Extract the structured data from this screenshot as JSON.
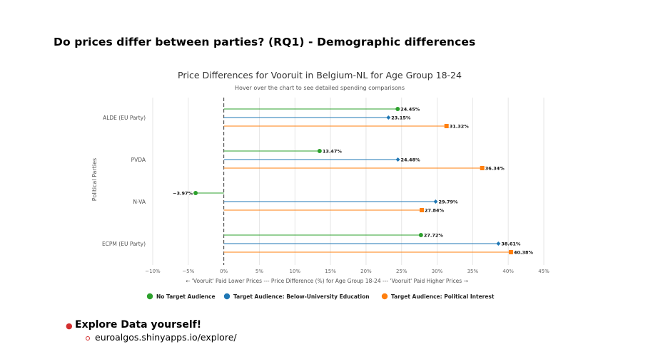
{
  "slide": {
    "title": "Do prices differ between parties? (RQ1) - Demographic differences",
    "bullet": "Explore Data yourself!",
    "subbullet": "euroalgos.shinyapps.io/explore/"
  },
  "chart_data": {
    "type": "dot-lollipop",
    "title": "Price Differences for Vooruit in Belgium-NL for Age Group 18-24",
    "subtitle": "Hover over the chart to see detailed spending comparisons",
    "xlabel": "← 'Vooruit' Paid Lower Prices --- Price Difference (%) for Age Group 18-24 --- 'Vooruit' Paid Higher Prices →",
    "ylabel": "Political Parties",
    "xlim": [
      -10,
      45
    ],
    "xticks": [
      -10,
      -5,
      0,
      5,
      10,
      15,
      20,
      25,
      30,
      35,
      40,
      45
    ],
    "xtick_labels": [
      "−10%",
      "−5%",
      "0%",
      "5%",
      "10%",
      "15%",
      "20%",
      "25%",
      "30%",
      "35%",
      "40%",
      "45%"
    ],
    "categories": [
      "ALDE (EU Party)",
      "PVDA",
      "N-VA",
      "ECPM (EU Party)"
    ],
    "series": [
      {
        "name": "No Target Audience",
        "color": "#2ca02c",
        "marker": "circle",
        "values": [
          24.45,
          13.47,
          -3.97,
          27.72
        ],
        "labels": [
          "24.45%",
          "13.47%",
          "−3.97%",
          "27.72%"
        ]
      },
      {
        "name": "Target Audience: Below-University Education",
        "color": "#1f77b4",
        "marker": "diamond",
        "values": [
          23.15,
          24.48,
          29.79,
          38.61
        ],
        "labels": [
          "23.15%",
          "24.48%",
          "29.79%",
          "38.61%"
        ]
      },
      {
        "name": "Target Audience: Political Interest",
        "color": "#ff7f0e",
        "marker": "square",
        "values": [
          31.32,
          36.34,
          27.84,
          40.38
        ],
        "labels": [
          "31.32%",
          "36.34%",
          "27.84%",
          "40.38%"
        ]
      }
    ],
    "grid": true,
    "legend": "bottom"
  }
}
